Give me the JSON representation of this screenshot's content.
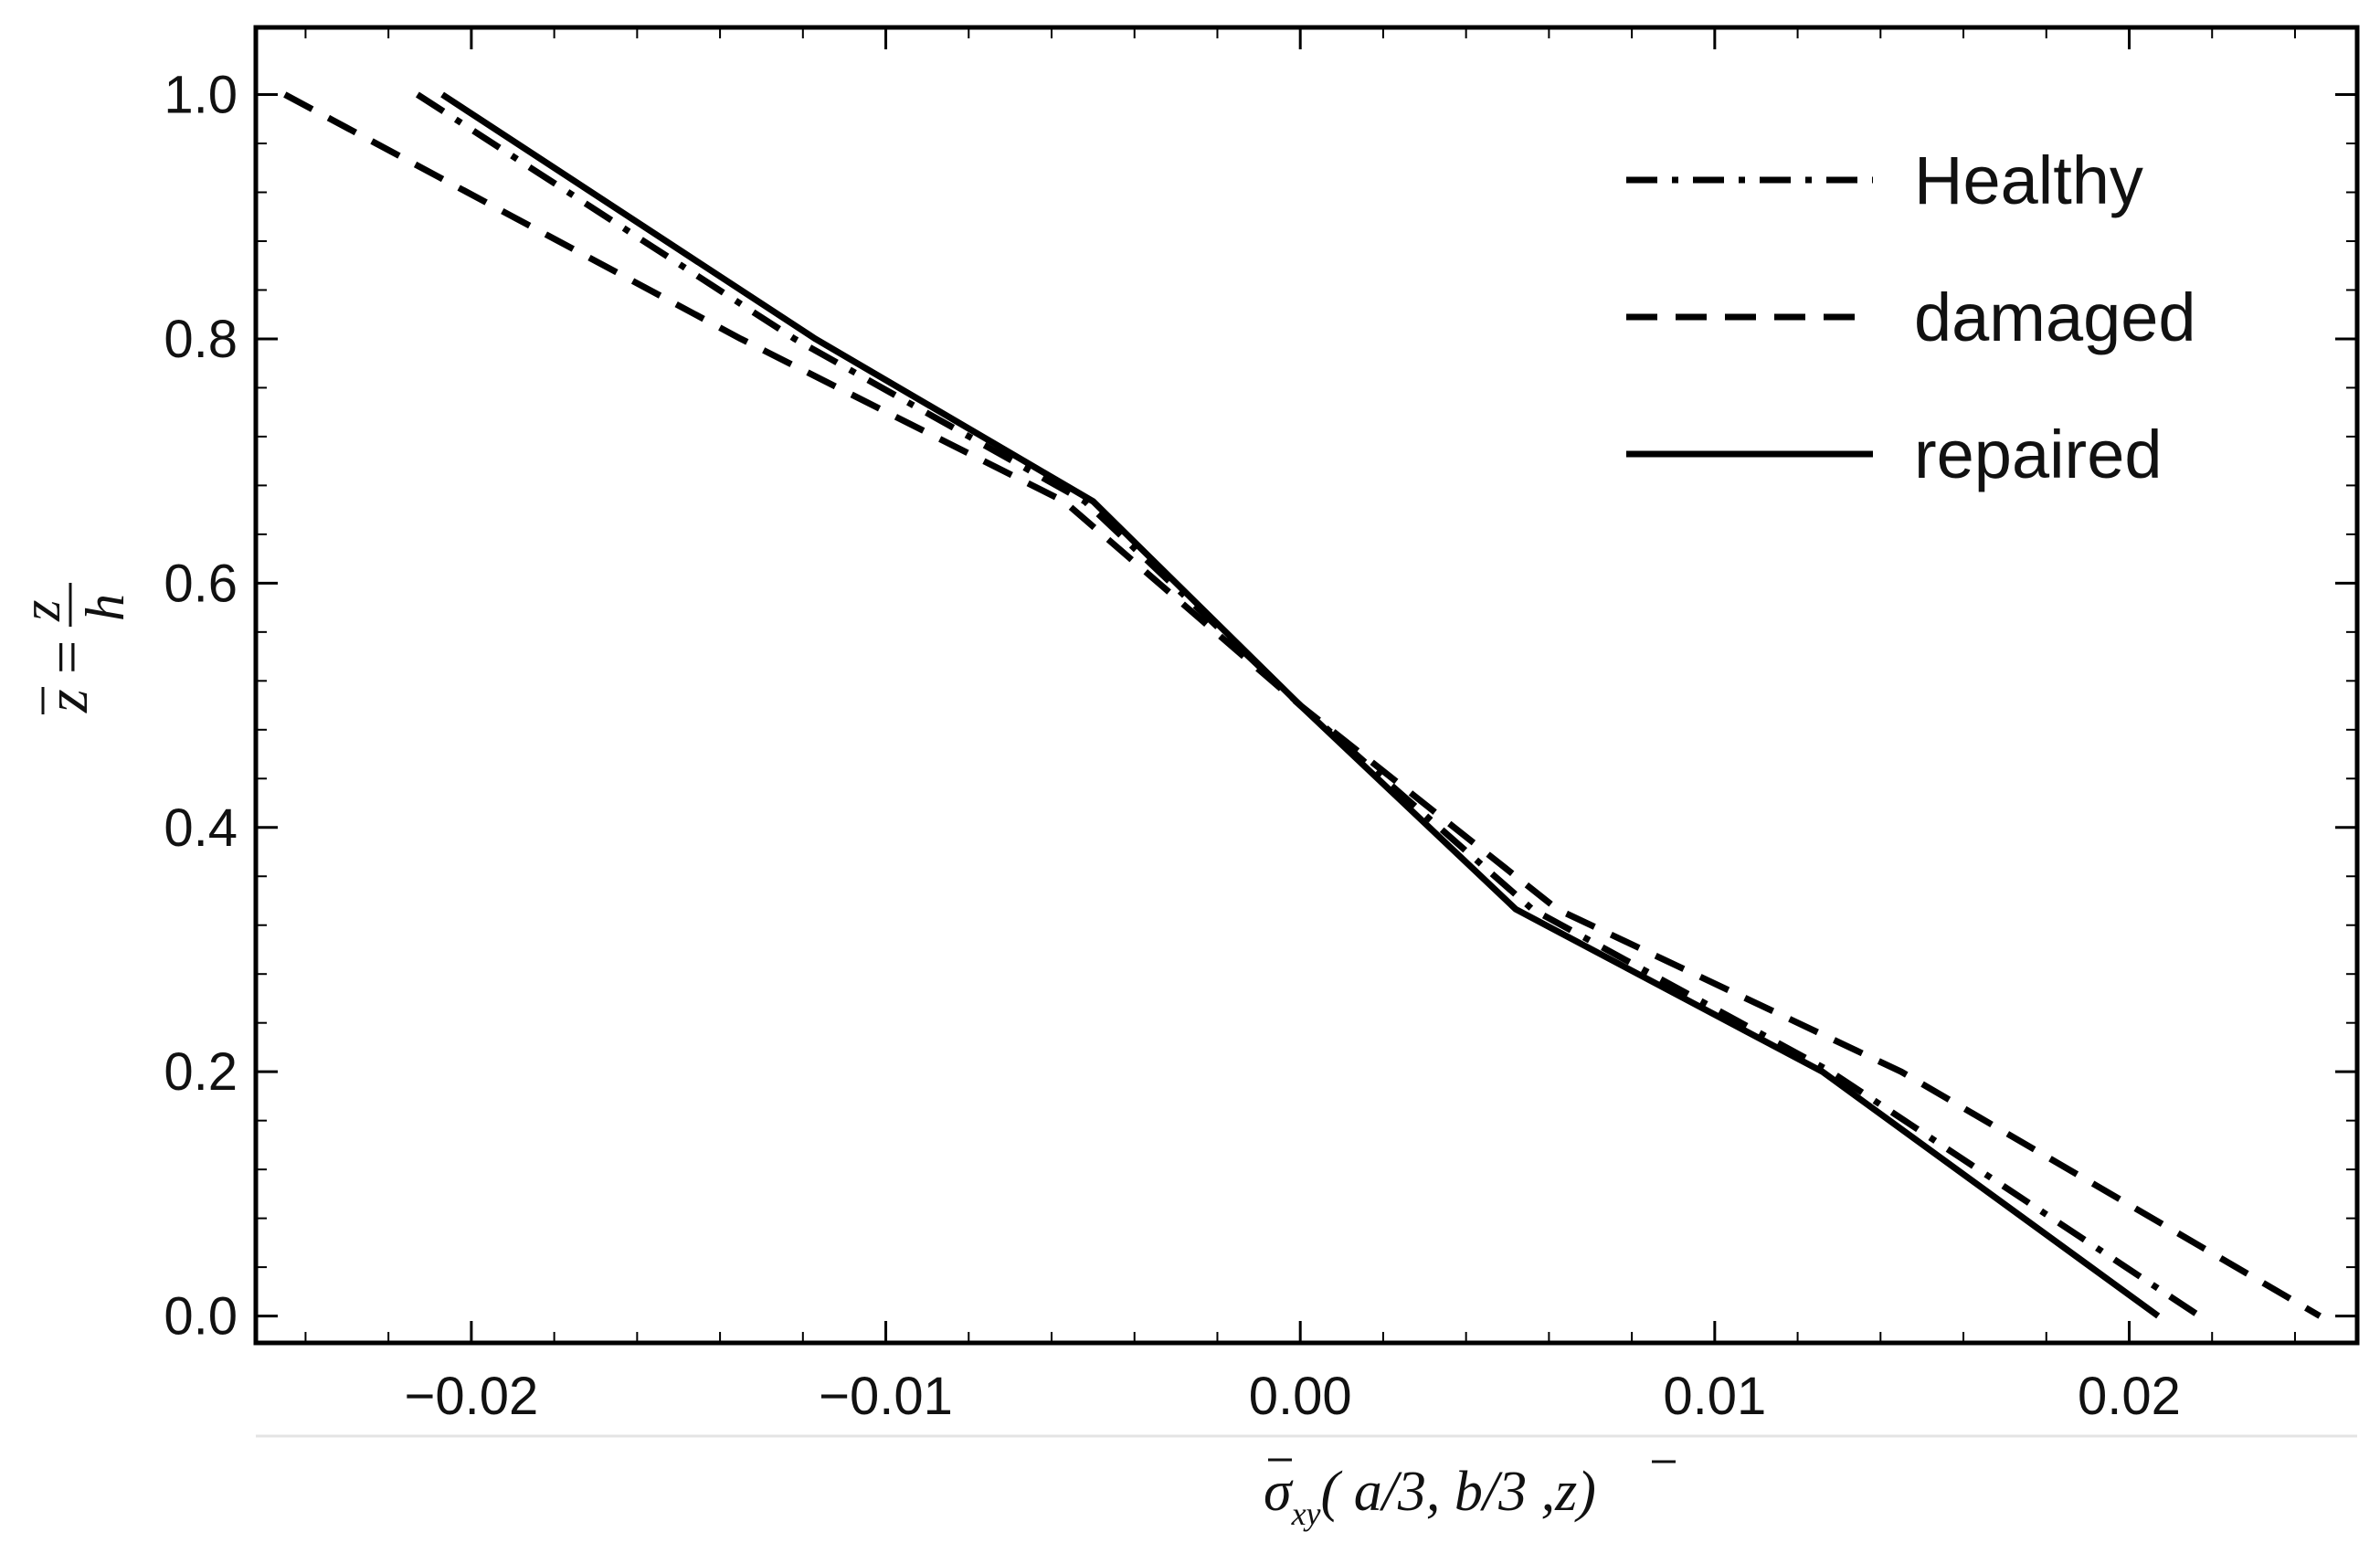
{
  "chart_data": {
    "type": "line",
    "xlabel": {
      "base": "σ",
      "sub": "xy",
      "args": "( a/3, b/3 ,",
      "z": "z",
      "close": ")"
    },
    "ylabel": {
      "lhs": "z",
      "eq": "=",
      "num": "z",
      "den": "h"
    },
    "xlim": [
      -0.0252,
      0.0255
    ],
    "ylim": [
      -0.022,
      1.055
    ],
    "x_ticks": [
      -0.02,
      -0.01,
      0.0,
      0.01,
      0.02
    ],
    "x_tick_labels": [
      "−0.02",
      "−0.01",
      "0.00",
      "0.01",
      "0.02"
    ],
    "y_ticks": [
      0.0,
      0.2,
      0.4,
      0.6,
      0.8,
      1.0
    ],
    "y_tick_labels": [
      "0.0",
      "0.2",
      "0.4",
      "0.6",
      "0.8",
      "1.0"
    ],
    "grid": false,
    "legend_position": "top-right",
    "series": [
      {
        "name": "Healthy",
        "style": "dashdot",
        "color": "#000000",
        "points": [
          [
            -0.0213,
            1.0
          ],
          [
            -0.0122,
            0.8
          ],
          [
            -0.0052,
            0.667
          ],
          [
            0.0,
            0.5
          ],
          [
            0.0056,
            0.333
          ],
          [
            0.0128,
            0.2
          ],
          [
            0.0217,
            0.0
          ]
        ]
      },
      {
        "name": "damaged",
        "style": "dashed",
        "color": "#000000",
        "points": [
          [
            -0.0245,
            1.0
          ],
          [
            -0.0135,
            0.8
          ],
          [
            -0.0057,
            0.667
          ],
          [
            0.0,
            0.5
          ],
          [
            0.0062,
            0.333
          ],
          [
            0.0145,
            0.2
          ],
          [
            0.0246,
            0.0
          ]
        ]
      },
      {
        "name": "repaired",
        "style": "solid",
        "color": "#000000",
        "points": [
          [
            -0.0207,
            1.0
          ],
          [
            -0.0117,
            0.8
          ],
          [
            -0.005,
            0.667
          ],
          [
            0.0,
            0.5
          ],
          [
            0.0052,
            0.333
          ],
          [
            0.0126,
            0.2
          ],
          [
            0.0207,
            0.0
          ]
        ]
      }
    ]
  }
}
